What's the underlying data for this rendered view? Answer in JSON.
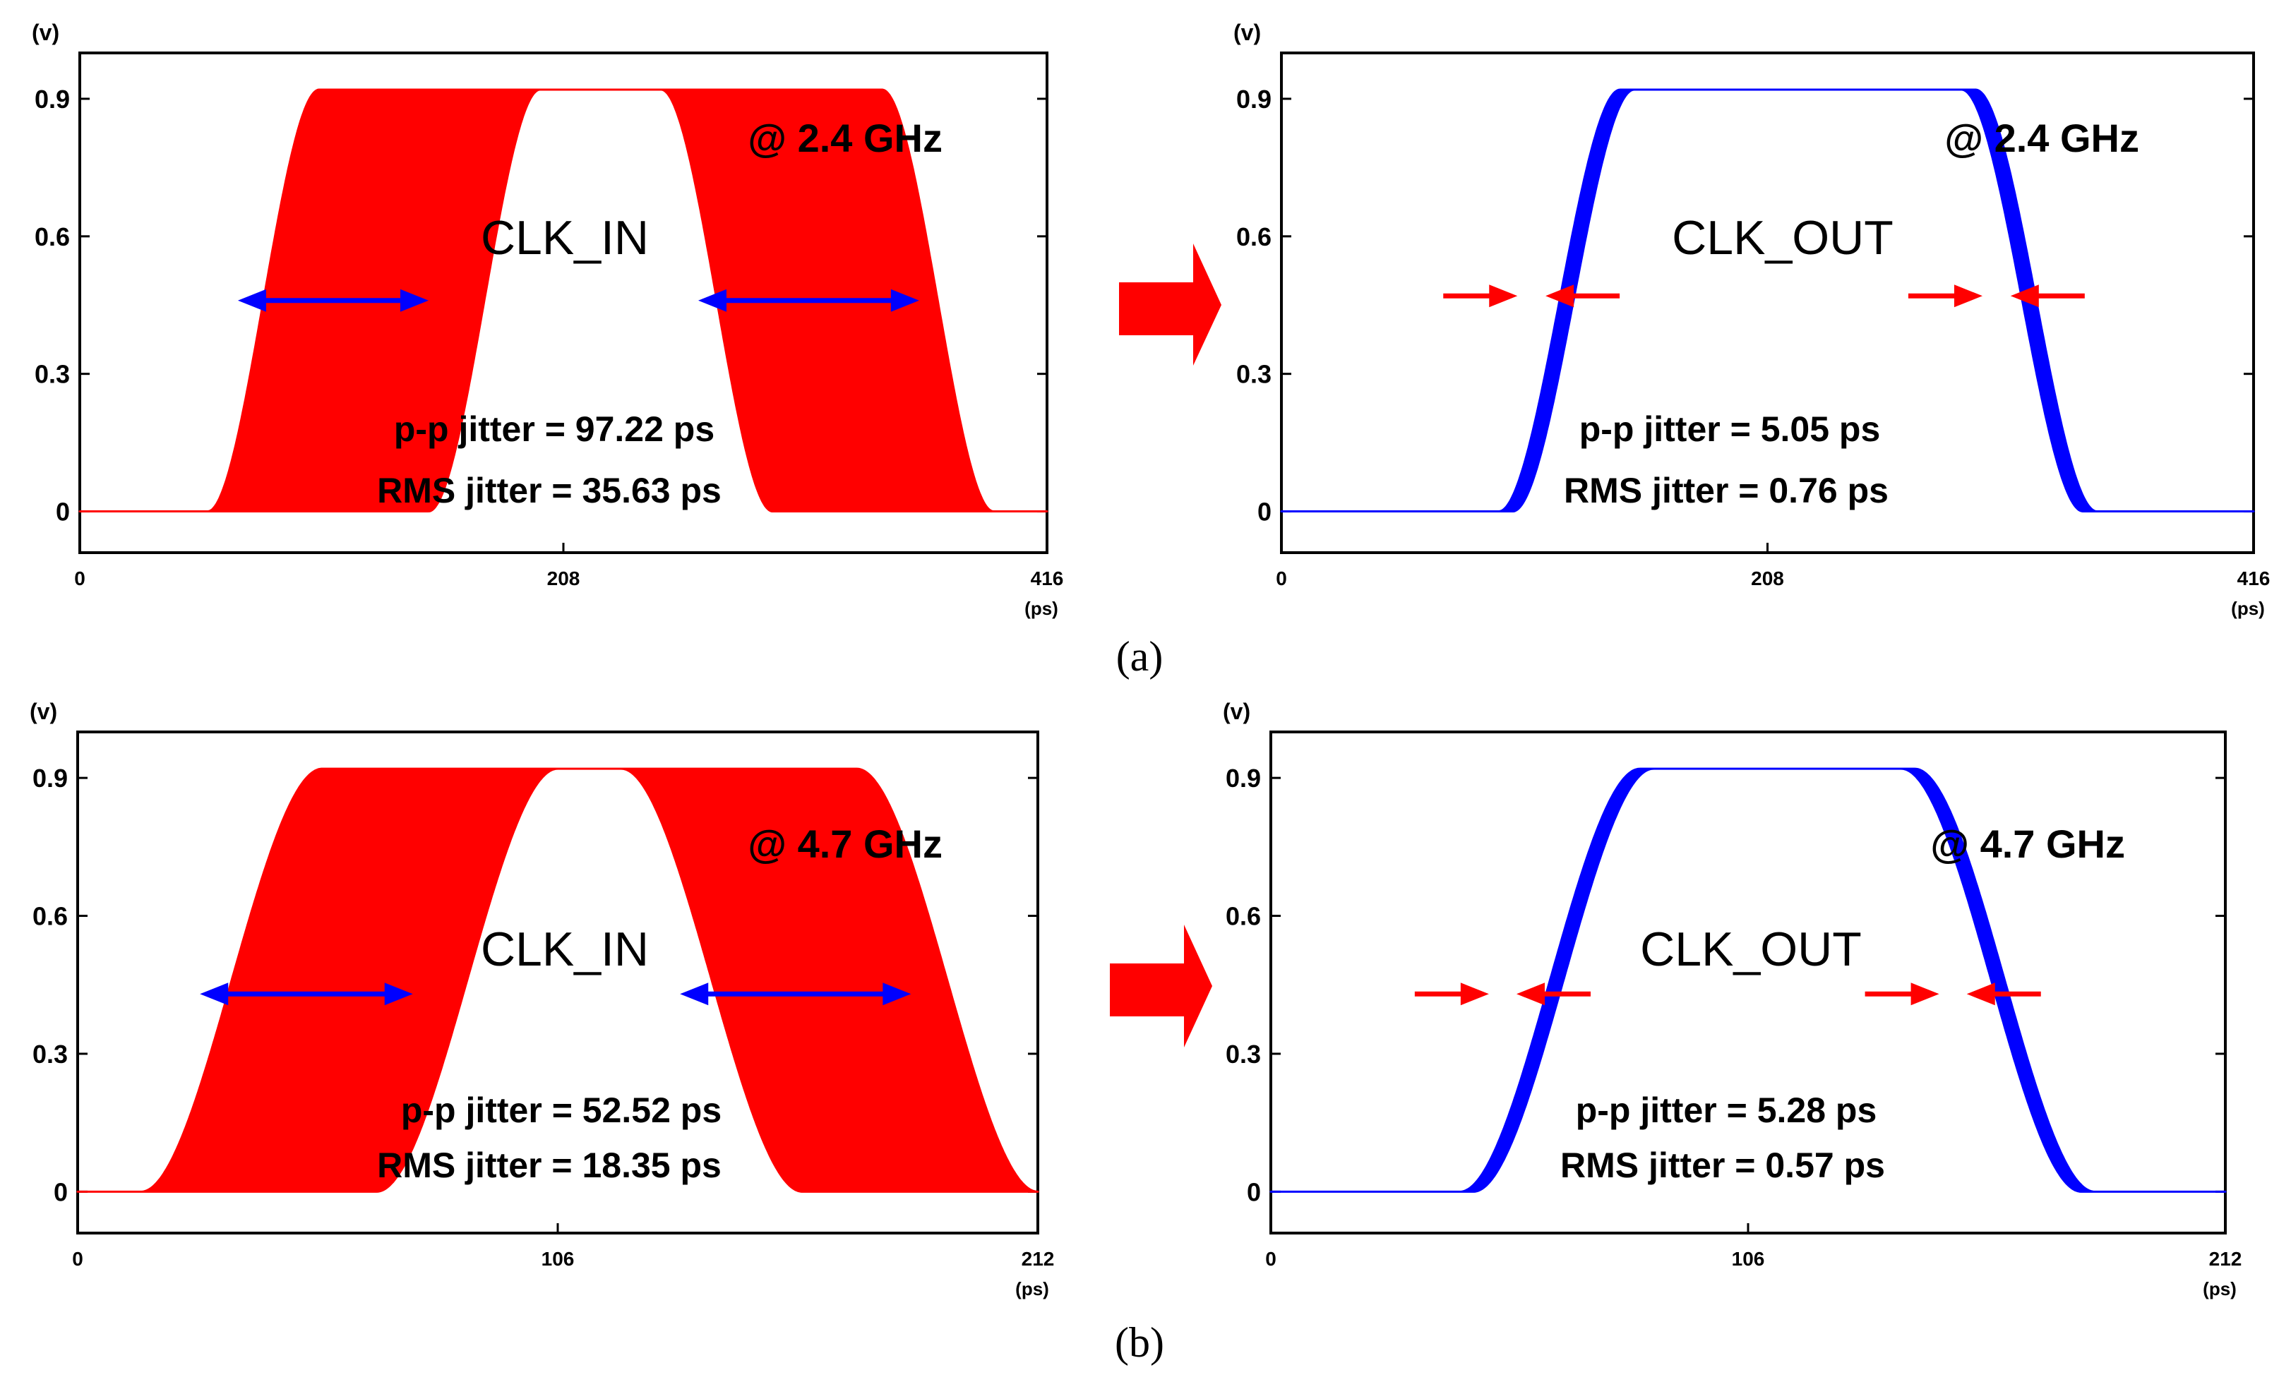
{
  "chart_data": [
    {
      "type": "line",
      "id": "a-in",
      "signal_label": "CLK_IN",
      "frequency_label": "@ 2.4 GHz",
      "pp_jitter": "p-p jitter = 97.22 ps",
      "rms_jitter": "RMS jitter = 35.63 ps",
      "x_ticks": [
        "0",
        "208",
        "416"
      ],
      "x_unit": "(ps)",
      "y_ticks": [
        "0",
        "0.3",
        "0.6",
        "0.9"
      ],
      "y_unit": "(v)",
      "xlim": [
        0,
        416
      ],
      "ylim": [
        -0.09,
        1.0
      ],
      "color": "#ff0000",
      "marker_color": "#0000ff",
      "marker_style": "span",
      "rise": {
        "t_early": 55,
        "t_late": 150,
        "duration": 48
      },
      "fall": {
        "t_early": 250,
        "t_late": 345,
        "duration": 48
      },
      "high": 0.92,
      "marker_level": 0.46,
      "rise_marker_range": [
        68,
        150
      ],
      "fall_marker_range": [
        266,
        361
      ]
    },
    {
      "type": "line",
      "id": "a-out",
      "signal_label": "CLK_OUT",
      "frequency_label": "@ 2.4 GHz",
      "pp_jitter": "p-p jitter = 5.05 ps",
      "rms_jitter": "RMS jitter = 0.76 ps",
      "x_ticks": [
        "0",
        "208",
        "416"
      ],
      "x_unit": "(ps)",
      "y_ticks": [
        "0",
        "0.3",
        "0.6",
        "0.9"
      ],
      "y_unit": "(v)",
      "xlim": [
        0,
        416
      ],
      "ylim": [
        -0.09,
        1.0
      ],
      "color": "#0000ff",
      "marker_color": "#ff0000",
      "marker_style": "pinch",
      "rise": {
        "t_early": 93,
        "t_late": 99,
        "duration": 52
      },
      "fall": {
        "t_early": 291,
        "t_late": 297,
        "duration": 52
      },
      "high": 0.92,
      "marker_level": 0.47,
      "rise_marker_x": [
        104,
        110
      ],
      "fall_marker_x": [
        303,
        309
      ]
    },
    {
      "type": "line",
      "id": "b-in",
      "signal_label": "CLK_IN",
      "frequency_label": "@ 4.7 GHz",
      "pp_jitter": "p-p jitter = 52.52 ps",
      "rms_jitter": "RMS jitter = 18.35 ps",
      "x_ticks": [
        "0",
        "106",
        "212"
      ],
      "x_unit": "(ps)",
      "y_ticks": [
        "0",
        "0.3",
        "0.6",
        "0.9"
      ],
      "y_unit": "(v)",
      "xlim": [
        0,
        212
      ],
      "ylim": [
        -0.09,
        1.0
      ],
      "color": "#ff0000",
      "marker_color": "#0000ff",
      "marker_style": "span",
      "rise": {
        "t_early": 14,
        "t_late": 66,
        "duration": 40
      },
      "fall": {
        "t_early": 120,
        "t_late": 172,
        "duration": 40
      },
      "high": 0.92,
      "marker_level": 0.43,
      "rise_marker_range": [
        27,
        74
      ],
      "fall_marker_range": [
        133,
        184
      ]
    },
    {
      "type": "line",
      "id": "b-out",
      "signal_label": "CLK_OUT",
      "frequency_label": "@ 4.7 GHz",
      "pp_jitter": "p-p jitter = 5.28 ps",
      "rms_jitter": "RMS jitter = 0.57 ps",
      "x_ticks": [
        "0",
        "106",
        "212"
      ],
      "x_unit": "(ps)",
      "y_ticks": [
        "0",
        "0.3",
        "0.6",
        "0.9"
      ],
      "y_unit": "(v)",
      "xlim": [
        0,
        212
      ],
      "ylim": [
        -0.09,
        1.0
      ],
      "color": "#0000ff",
      "marker_color": "#ff0000",
      "marker_style": "pinch",
      "rise": {
        "t_early": 42,
        "t_late": 45,
        "duration": 40
      },
      "fall": {
        "t_early": 140,
        "t_late": 143,
        "duration": 40
      },
      "high": 0.92,
      "marker_level": 0.43,
      "rise_marker_x": [
        50,
        53
      ],
      "fall_marker_x": [
        150,
        153
      ]
    }
  ],
  "captions": {
    "a": "(a)",
    "b": "(b)"
  },
  "transfer_arrow_color": "#ff0000"
}
